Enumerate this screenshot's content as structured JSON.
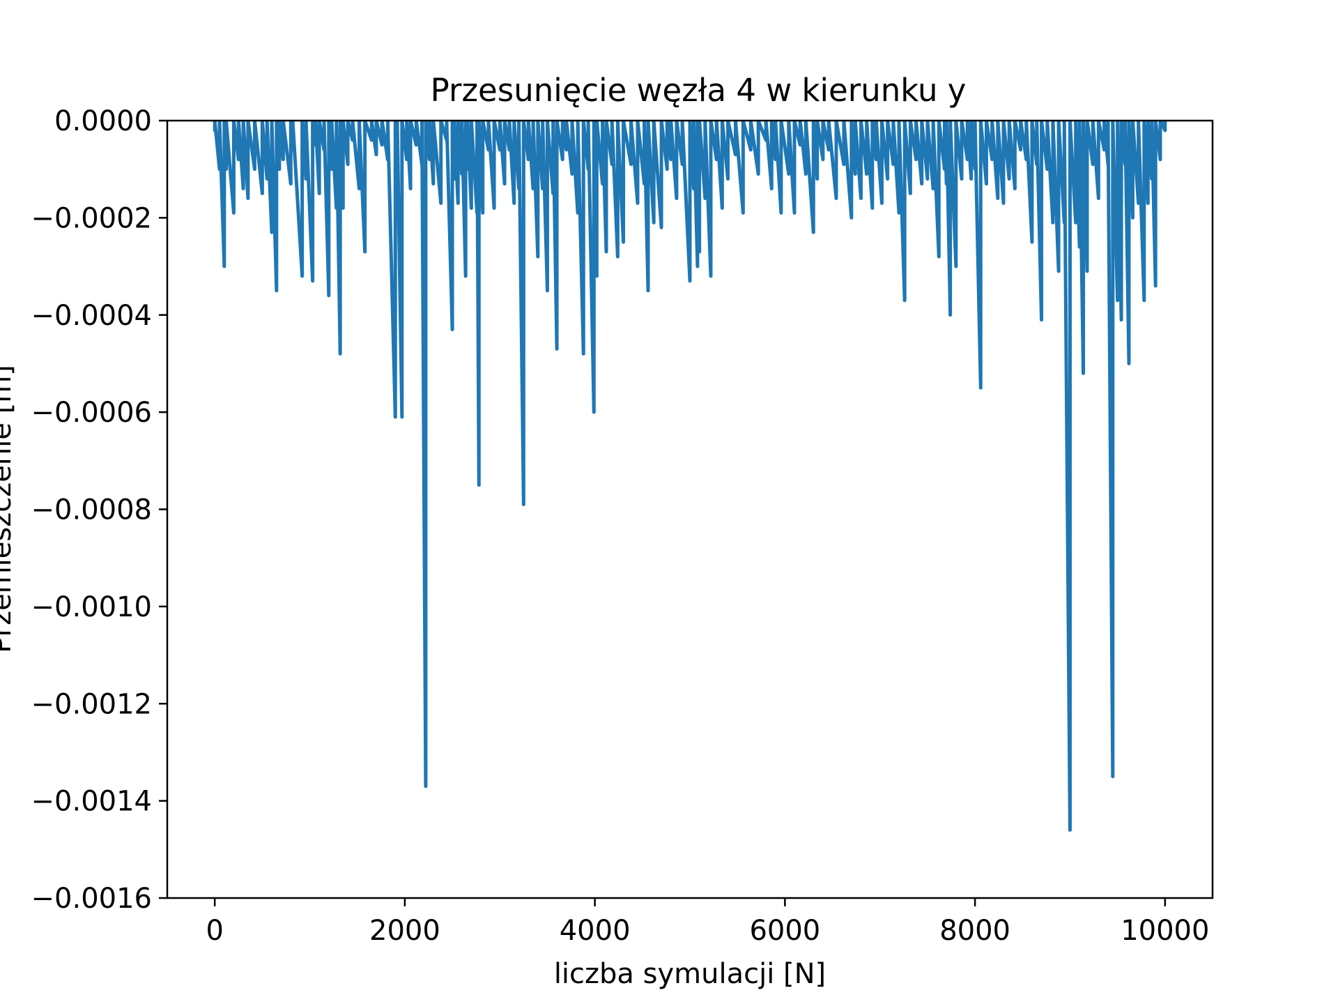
{
  "chart_data": {
    "type": "line",
    "title": "Przesunięcie węzła 4 w kierunku y",
    "xlabel": "liczba symulacji [N]",
    "ylabel": "Przemieszczenie [m]",
    "xlim": [
      -500,
      10500
    ],
    "ylim": [
      -0.0016,
      0.0
    ],
    "x_ticks": [
      0,
      2000,
      4000,
      6000,
      8000,
      10000
    ],
    "x_tick_labels": [
      "0",
      "2000",
      "4000",
      "6000",
      "8000",
      "10000"
    ],
    "y_ticks": [
      0.0,
      -0.0002,
      -0.0004,
      -0.0006,
      -0.0008,
      -0.001,
      -0.0012,
      -0.0014,
      -0.0016
    ],
    "y_tick_labels": [
      "0.0000",
      "−0.0002",
      "−0.0004",
      "−0.0006",
      "−0.0008",
      "−0.0010",
      "−0.0012",
      "−0.0014",
      "−0.0016"
    ],
    "grid": false,
    "series": [
      {
        "color": "#1f77b4",
        "x": [
          0,
          50,
          100,
          120,
          200,
          250,
          300,
          350,
          420,
          500,
          550,
          600,
          650,
          680,
          720,
          800,
          820,
          920,
          960,
          1030,
          1060,
          1100,
          1150,
          1200,
          1230,
          1280,
          1320,
          1350,
          1400,
          1450,
          1520,
          1580,
          1650,
          1700,
          1760,
          1820,
          1900,
          1920,
          1970,
          2020,
          2060,
          2120,
          2180,
          2220,
          2260,
          2300,
          2380,
          2440,
          2500,
          2520,
          2560,
          2600,
          2640,
          2660,
          2700,
          2760,
          2780,
          2820,
          2880,
          2940,
          3000,
          3050,
          3100,
          3150,
          3200,
          3250,
          3300,
          3350,
          3400,
          3450,
          3500,
          3560,
          3600,
          3660,
          3700,
          3760,
          3820,
          3880,
          3930,
          3990,
          4020,
          4080,
          4120,
          4180,
          4240,
          4300,
          4380,
          4450,
          4520,
          4560,
          4620,
          4700,
          4760,
          4800,
          4860,
          4920,
          5000,
          5040,
          5080,
          5100,
          5160,
          5220,
          5280,
          5340,
          5400,
          5480,
          5560,
          5640,
          5720,
          5800,
          5860,
          5900,
          5960,
          6040,
          6100,
          6160,
          6220,
          6300,
          6340,
          6400,
          6460,
          6540,
          6620,
          6700,
          6740,
          6800,
          6860,
          6920,
          6960,
          7020,
          7080,
          7140,
          7200,
          7260,
          7320,
          7380,
          7440,
          7500,
          7560,
          7620,
          7680,
          7700,
          7740,
          7800,
          7860,
          7920,
          7960,
          8000,
          8060,
          8120,
          8180,
          8240,
          8300,
          8360,
          8420,
          8480,
          8540,
          8600,
          8650,
          8700,
          8760,
          8820,
          8880,
          8940,
          9000,
          9060,
          9100,
          9140,
          9180,
          9240,
          9300,
          9360,
          9400,
          9450,
          9500,
          9540,
          9580,
          9620,
          9660,
          9720,
          9780,
          9820,
          9860,
          9900,
          9950,
          10000
        ],
        "y": [
          -2e-05,
          -0.0001,
          -0.0003,
          -0.0001,
          -0.00019,
          -8e-05,
          -0.00014,
          -0.00016,
          -0.0001,
          -0.00015,
          -0.00012,
          -0.00023,
          -0.00035,
          -0.0001,
          -8e-05,
          -0.00013,
          -6e-05,
          -0.00032,
          -0.00012,
          -0.00033,
          -5e-05,
          -0.00015,
          -6e-05,
          -0.00036,
          -0.0001,
          -0.00018,
          -0.00048,
          -0.00018,
          -9e-05,
          -4e-05,
          -0.00014,
          -0.00027,
          -4e-05,
          -7e-05,
          -5e-05,
          -8e-05,
          -0.00061,
          -0.0001,
          -0.00061,
          -8e-05,
          -0.00014,
          -5e-05,
          -9e-05,
          -0.00137,
          -8e-05,
          -0.00013,
          -0.00017,
          -4e-05,
          -0.00043,
          -0.00012,
          -0.00017,
          -0.00011,
          -0.00032,
          -0.0001,
          -0.00018,
          -0.00019,
          -0.00075,
          -0.00019,
          -6e-05,
          -0.00018,
          -6e-05,
          -0.00013,
          -6e-05,
          -0.00017,
          -0.00014,
          -0.00079,
          -8e-05,
          -0.00014,
          -0.00028,
          -0.00014,
          -0.00035,
          -0.00015,
          -0.00047,
          -8e-05,
          -6e-05,
          -0.00011,
          -0.00019,
          -0.00048,
          -0.0001,
          -0.0006,
          -0.00032,
          -0.00013,
          -0.00027,
          -9e-05,
          -0.00028,
          -0.00025,
          -9e-05,
          -0.00017,
          -0.00013,
          -0.00035,
          -0.00021,
          -0.00022,
          -0.0001,
          -8e-05,
          -0.00016,
          -9e-05,
          -0.00033,
          -0.00014,
          -0.0003,
          -0.00027,
          -0.00016,
          -0.00032,
          -8e-05,
          -0.00018,
          -0.00012,
          -7e-05,
          -0.00019,
          -6e-05,
          -0.00011,
          -4e-05,
          -0.00014,
          -8e-05,
          -0.00019,
          -0.00011,
          -0.00019,
          -5e-05,
          -0.00011,
          -0.00023,
          -0.00012,
          -8e-05,
          -6e-05,
          -0.00016,
          -9e-05,
          -0.0002,
          -0.00011,
          -0.00016,
          -0.00011,
          -0.00018,
          -8e-05,
          -0.00017,
          -0.00012,
          -9e-05,
          -0.00019,
          -0.00037,
          -0.00015,
          -8e-05,
          -0.00013,
          -0.00012,
          -0.00014,
          -0.00028,
          -0.0001,
          -0.00013,
          -0.0004,
          -0.0003,
          -0.00012,
          -8e-05,
          -0.00012,
          -0.0001,
          -0.00055,
          -0.00013,
          -8e-05,
          -0.00016,
          -0.00017,
          -0.00012,
          -0.00014,
          -6e-05,
          -8e-05,
          -0.00025,
          -9e-05,
          -0.00041,
          -0.0001,
          -0.00021,
          -0.00031,
          -0.00021,
          -0.00146,
          -0.00021,
          -0.00026,
          -0.00052,
          -0.00031,
          -9e-05,
          -0.00016,
          -6e-05,
          -9e-05,
          -0.00135,
          -0.00037,
          -0.00041,
          -9e-05,
          -0.0005,
          -0.0002,
          -0.00017,
          -0.00037,
          -0.00017,
          -0.00012,
          -0.00034,
          -8e-05,
          -2e-05
        ]
      }
    ]
  }
}
